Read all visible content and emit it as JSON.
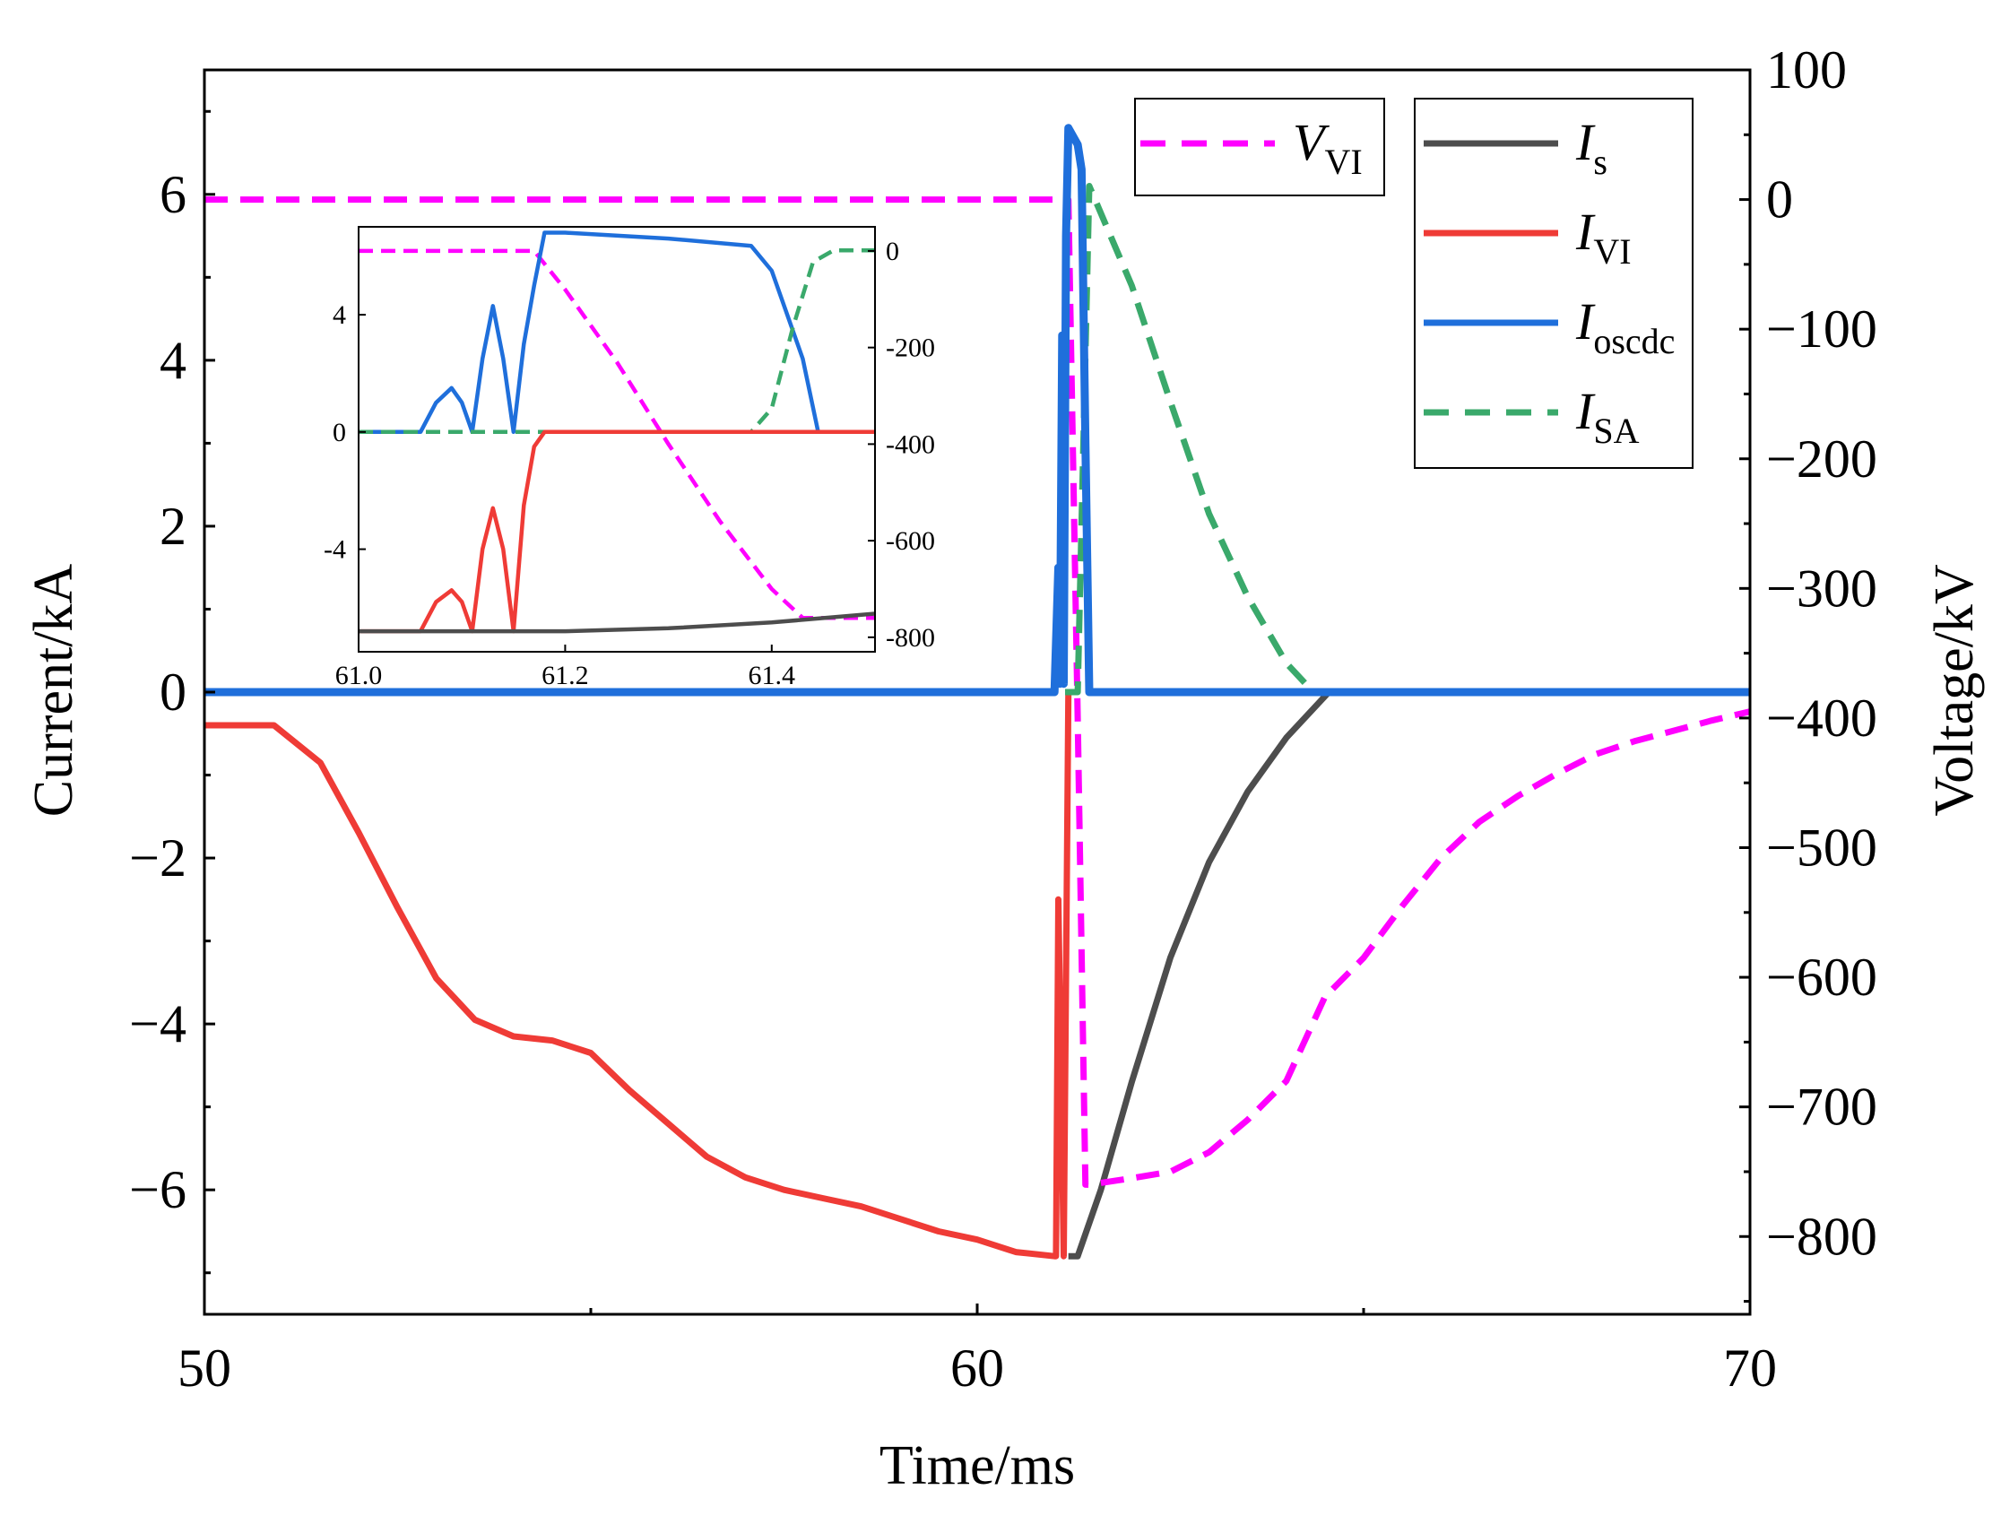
{
  "chart_data": {
    "type": "line",
    "title": "",
    "xlabel": "Time/ms",
    "ylabel_left": "Current/kA",
    "ylabel_right": "Voltage/kV",
    "xlim": [
      50,
      70
    ],
    "ylim_left": [
      -7.5,
      7.5
    ],
    "ylim_right": [
      -860,
      100
    ],
    "x_ticks": [
      50,
      60,
      70
    ],
    "x_tick_labels": [
      "50",
      "60",
      "70"
    ],
    "y_left_ticks": [
      -6,
      -4,
      -2,
      0,
      2,
      4,
      6
    ],
    "y_left_tick_labels": [
      "−6",
      "−4",
      "−2",
      "0",
      "2",
      "4",
      "6"
    ],
    "y_right_ticks": [
      100,
      0,
      -100,
      -200,
      -300,
      -400,
      -500,
      -600,
      -700,
      -800
    ],
    "y_right_tick_labels": [
      "100",
      "0",
      "−100",
      "−200",
      "−300",
      "−400",
      "−500",
      "−600",
      "−700",
      "−800"
    ],
    "grid": false,
    "legend_vvi": {
      "placement": "top-center",
      "entry": {
        "name": "V",
        "sub": "VI",
        "color": "#ff00ff",
        "dash": true
      }
    },
    "legend_currents": {
      "placement": "top-right",
      "entries": [
        {
          "name": "I",
          "sub": "s",
          "color": "#4d4d4d",
          "dash": false
        },
        {
          "name": "I",
          "sub": "VI",
          "color": "#ef3b36",
          "dash": false
        },
        {
          "name": "I",
          "sub": "oscdc",
          "color": "#1f6fdb",
          "dash": false
        },
        {
          "name": "I",
          "sub": "SA",
          "color": "#3aa96b",
          "dash": true
        }
      ]
    },
    "series": [
      {
        "name": "I_VI",
        "axis": "left",
        "color": "#ef3b36",
        "dash": false,
        "x": [
          50,
          50.9,
          51.5,
          52,
          52.5,
          53,
          53.5,
          54,
          54.5,
          55,
          55.5,
          56,
          56.5,
          57,
          57.5,
          58,
          58.5,
          59,
          59.5,
          60,
          60.5,
          61.0,
          61.02,
          61.05,
          61.12,
          61.18
        ],
        "y": [
          -0.4,
          -0.4,
          -0.85,
          -1.7,
          -2.6,
          -3.45,
          -3.95,
          -4.15,
          -4.2,
          -4.35,
          -4.8,
          -5.2,
          -5.6,
          -5.85,
          -6.0,
          -6.1,
          -6.2,
          -6.35,
          -6.5,
          -6.6,
          -6.75,
          -6.8,
          -6.8,
          -2.5,
          -6.8,
          0
        ]
      },
      {
        "name": "I_s",
        "axis": "left",
        "color": "#4d4d4d",
        "dash": false,
        "x": [
          61.18,
          61.3,
          61.6,
          62,
          62.5,
          63,
          63.5,
          64,
          64.55
        ],
        "y": [
          -6.8,
          -6.8,
          -6.0,
          -4.7,
          -3.2,
          -2.05,
          -1.2,
          -0.55,
          0
        ]
      },
      {
        "name": "I_oscdc",
        "axis": "left",
        "color": "#1f6fdb",
        "dash": false,
        "x": [
          50,
          61.0,
          61.05,
          61.07,
          61.1,
          61.12,
          61.15,
          61.18,
          61.3,
          61.35,
          61.4,
          61.45,
          70
        ],
        "y": [
          0,
          0,
          1.5,
          0.1,
          4.3,
          0.1,
          5.5,
          6.8,
          6.6,
          6.3,
          3.0,
          0,
          0
        ]
      },
      {
        "name": "I_SA",
        "axis": "left",
        "color": "#3aa96b",
        "dash": true,
        "x": [
          50,
          61.3,
          61.45,
          62,
          62.5,
          63,
          63.5,
          64,
          64.35,
          70
        ],
        "y": [
          0,
          0,
          6.1,
          4.9,
          3.5,
          2.15,
          1.15,
          0.35,
          0,
          0
        ]
      },
      {
        "name": "V_VI",
        "axis": "right",
        "color": "#ff00ff",
        "dash": true,
        "x": [
          50,
          61.18,
          61.3,
          61.4,
          61.45,
          62,
          62.5,
          63,
          63.5,
          64,
          64.5,
          65,
          65.5,
          66,
          66.5,
          67,
          67.5,
          68,
          68.5,
          69,
          69.5,
          70
        ],
        "y": [
          0,
          0,
          -400,
          -760,
          -760,
          -755,
          -750,
          -735,
          -710,
          -680,
          -615,
          -585,
          -545,
          -508,
          -480,
          -460,
          -443,
          -428,
          -418,
          -410,
          -402,
          -395
        ]
      }
    ],
    "inset": {
      "placement": "upper-left",
      "xlim": [
        61.0,
        61.5
      ],
      "ylim_left": [
        -7.5,
        7
      ],
      "ylim_right": [
        -830,
        50
      ],
      "x_ticks": [
        61.0,
        61.2,
        61.4
      ],
      "x_tick_labels": [
        "61.0",
        "61.2",
        "61.4"
      ],
      "y_left_ticks": [
        4,
        0,
        -4
      ],
      "y_left_tick_labels": [
        "4",
        "0",
        "-4"
      ],
      "y_right_ticks": [
        0,
        -200,
        -400,
        -600,
        -800
      ],
      "y_right_tick_labels": [
        "0",
        "-200",
        "-400",
        "-600",
        "-800"
      ],
      "series": [
        {
          "name": "V_VI",
          "axis": "right",
          "color": "#ff00ff",
          "dash": true,
          "x": [
            61.0,
            61.17,
            61.2,
            61.25,
            61.3,
            61.35,
            61.4,
            61.43,
            61.5
          ],
          "y": [
            0,
            0,
            -80,
            -230,
            -400,
            -560,
            -700,
            -760,
            -760
          ]
        },
        {
          "name": "I_oscdc",
          "axis": "left",
          "color": "#1f6fdb",
          "dash": false,
          "x": [
            61.0,
            61.06,
            61.075,
            61.09,
            61.1,
            61.11,
            61.12,
            61.13,
            61.14,
            61.15,
            61.16,
            61.17,
            61.18,
            61.2,
            61.3,
            61.38,
            61.4,
            61.43,
            61.445,
            61.5
          ],
          "y": [
            0,
            0,
            1.0,
            1.5,
            1.0,
            0,
            2.5,
            4.3,
            2.5,
            0,
            3.0,
            5.0,
            6.8,
            6.8,
            6.6,
            6.35,
            5.5,
            2.5,
            0,
            0
          ]
        },
        {
          "name": "I_SA",
          "axis": "left",
          "color": "#3aa96b",
          "dash": true,
          "x": [
            61.0,
            61.38,
            61.4,
            61.42,
            61.44,
            61.46,
            61.5
          ],
          "y": [
            0,
            0,
            0.8,
            3.5,
            5.8,
            6.2,
            6.2
          ]
        },
        {
          "name": "I_VI",
          "axis": "left",
          "color": "#ef3b36",
          "dash": false,
          "x": [
            61.0,
            61.06,
            61.075,
            61.09,
            61.1,
            61.11,
            61.12,
            61.13,
            61.14,
            61.15,
            61.16,
            61.17,
            61.18,
            61.5
          ],
          "y": [
            -6.8,
            -6.8,
            -5.8,
            -5.4,
            -5.8,
            -6.8,
            -4.0,
            -2.6,
            -4.0,
            -6.8,
            -2.5,
            -0.5,
            0,
            0
          ]
        },
        {
          "name": "I_s",
          "axis": "left",
          "color": "#4d4d4d",
          "dash": false,
          "x": [
            61.0,
            61.2,
            61.3,
            61.4,
            61.5
          ],
          "y": [
            -6.8,
            -6.8,
            -6.7,
            -6.5,
            -6.2
          ]
        }
      ]
    }
  }
}
